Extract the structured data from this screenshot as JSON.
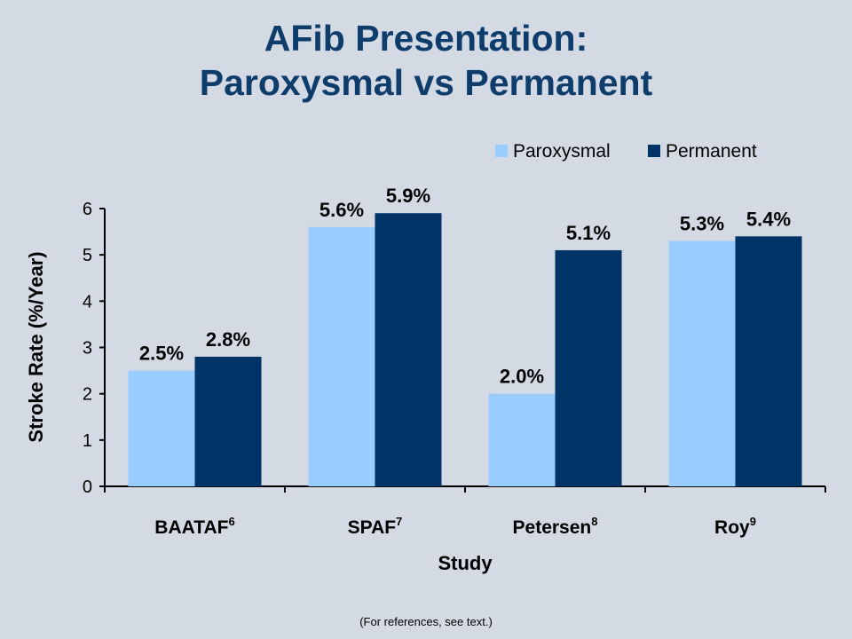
{
  "title": {
    "line1": "AFib Presentation:",
    "line2": "Paroxysmal vs Permanent"
  },
  "footnote": "(For references, see text.)",
  "colors": {
    "paroxysmal": "#99ccff",
    "permanent": "#003366",
    "title": "#0e3d6b",
    "background": "#d4dae3"
  },
  "chart_data": {
    "type": "bar",
    "xlabel": "Study",
    "ylabel": "Stroke Rate (%/Year)",
    "ylim": [
      0,
      6
    ],
    "yticks": [
      "0",
      "1",
      "2",
      "3",
      "4",
      "5",
      "6"
    ],
    "legend_position": "top-right",
    "categories": [
      {
        "name": "BAATAF",
        "ref": "6"
      },
      {
        "name": "SPAF",
        "ref": "7"
      },
      {
        "name": "Petersen",
        "ref": "8"
      },
      {
        "name": "Roy",
        "ref": "9"
      }
    ],
    "series": [
      {
        "name": "Paroxysmal",
        "color": "#99ccff",
        "values": [
          2.5,
          5.6,
          2.0,
          5.3
        ],
        "labels": [
          "2.5%",
          "5.6%",
          "2.0%",
          "5.3%"
        ]
      },
      {
        "name": "Permanent",
        "color": "#003366",
        "values": [
          2.8,
          5.9,
          5.1,
          5.4
        ],
        "labels": [
          "2.8%",
          "5.9%",
          "5.1%",
          "5.4%"
        ]
      }
    ]
  }
}
